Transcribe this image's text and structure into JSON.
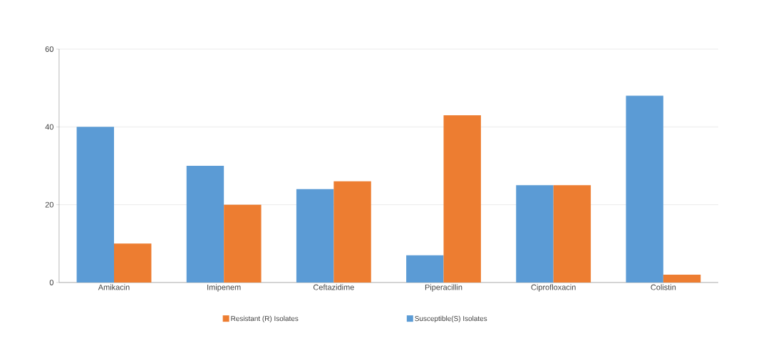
{
  "chart_data": {
    "type": "bar",
    "categories": [
      "Amikacin",
      "Imipenem",
      "Ceftazidime",
      "Piperacillin",
      "Ciprofloxacin",
      "Colistin"
    ],
    "series": [
      {
        "name": "Susceptible(S) Isolates",
        "color": "#5b9bd5",
        "values": [
          40,
          30,
          24,
          7,
          25,
          48
        ]
      },
      {
        "name": "Resistant (R) Isolates",
        "color": "#ed7d31",
        "values": [
          10,
          20,
          26,
          43,
          25,
          2
        ]
      }
    ],
    "ylim": [
      0,
      60
    ],
    "yticks": [
      0,
      20,
      40,
      60
    ],
    "grid": "y",
    "legend": "bottom"
  }
}
